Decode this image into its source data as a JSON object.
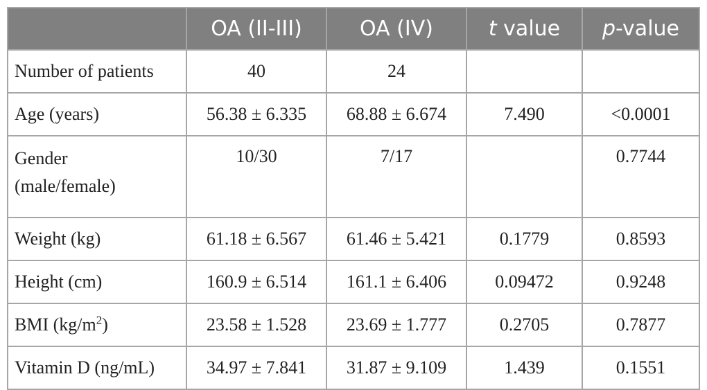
{
  "table": {
    "header": {
      "col0": "",
      "col1": "OA (II-III)",
      "col2": "OA (IV)",
      "col3_italic": "t",
      "col3_rest": " value",
      "col4_italic": "p",
      "col4_rest": "-value"
    },
    "rows": [
      {
        "label": "Number of patients",
        "oa23": "40",
        "oa4": "24",
        "t": "",
        "p": ""
      },
      {
        "label": "Age (years)",
        "oa23": "56.38 ± 6.335",
        "oa4": "68.88 ± 6.674",
        "t": "7.490",
        "p": "<0.0001"
      },
      {
        "label_line1": "Gender",
        "label_line2": "(male/female)",
        "oa23": "10/30",
        "oa4": "7/17",
        "t": "",
        "p": "0.7744"
      },
      {
        "label": "Weight (kg)",
        "oa23": "61.18 ± 6.567",
        "oa4": "61.46 ± 5.421",
        "t": "0.1779",
        "p": "0.8593"
      },
      {
        "label": "Height (cm)",
        "oa23": "160.9 ± 6.514",
        "oa4": "161.1 ± 6.406",
        "t": "0.09472",
        "p": "0.9248"
      },
      {
        "label_pre": "BMI (kg/m",
        "label_sup": "2",
        "label_post": ")",
        "oa23": "23.58 ± 1.528",
        "oa4": "23.69 ± 1.777",
        "t": "0.2705",
        "p": "0.7877"
      },
      {
        "label": "Vitamin D (ng/mL)",
        "oa23": "34.97 ± 7.841",
        "oa4": "31.87 ± 9.109",
        "t": "1.439",
        "p": "0.1551"
      }
    ]
  }
}
